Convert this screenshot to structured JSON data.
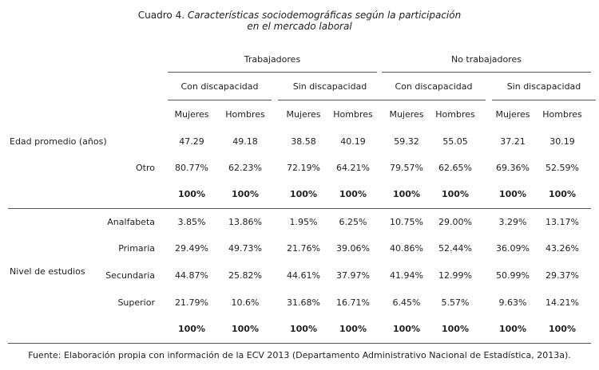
{
  "title": {
    "number": "Cuadro 4.",
    "lines": [
      "Características sociodemográficas según la participación",
      "en el mercado laboral"
    ]
  },
  "table": {
    "groups": [
      {
        "label": "Trabajadores",
        "subgroups": [
          {
            "label": "Con discapacidad",
            "columns": [
              "Mujeres",
              "Hombres"
            ]
          },
          {
            "label": "Sin discapacidad",
            "columns": [
              "Mujeres",
              "Hombres"
            ]
          }
        ]
      },
      {
        "label": "No trabajadores",
        "subgroups": [
          {
            "label": "Con discapacidad",
            "columns": [
              "Mujeres",
              "Hombres"
            ]
          },
          {
            "label": "Sin discapacidad",
            "columns": [
              "Mujeres",
              "Hombres"
            ]
          }
        ]
      }
    ],
    "sections": [
      {
        "label": "Edad promedio (años)",
        "rows": [
          {
            "cells": [
              "47.29",
              "49.18",
              "38.58",
              "40.19",
              "59.32",
              "55.05",
              "37.21",
              "30.19"
            ]
          },
          {
            "label": "Otro",
            "cells": [
              "80.77%",
              "62.23%",
              "72.19%",
              "64.21%",
              "79.57%",
              "62.65%",
              "69.36%",
              "52.59%"
            ]
          },
          {
            "cells": [
              "100%",
              "100%",
              "100%",
              "100%",
              "100%",
              "100%",
              "100%",
              "100%"
            ]
          }
        ]
      },
      {
        "label": "Nivel de estudios",
        "rows": [
          {
            "label": "Analfabeta",
            "cells": [
              "3.85%",
              "13.86%",
              "1.95%",
              "6.25%",
              "10.75%",
              "29.00%",
              "3.29%",
              "13.17%"
            ]
          },
          {
            "label": "Primaria",
            "cells": [
              "29.49%",
              "49.73%",
              "21.76%",
              "39.06%",
              "40.86%",
              "52.44%",
              "36.09%",
              "43.26%"
            ]
          },
          {
            "label": "Secundaria",
            "cells": [
              "44.87%",
              "25.82%",
              "44.61%",
              "37.97%",
              "41.94%",
              "12.99%",
              "50.99%",
              "29.37%"
            ]
          },
          {
            "label": "Superior",
            "cells": [
              "21.79%",
              "10.6%",
              "31.68%",
              "16.71%",
              "6.45%",
              "5.57%",
              "9.63%",
              "14.21%"
            ]
          },
          {
            "cells": [
              "100%",
              "100%",
              "100%",
              "100%",
              "100%",
              "100%",
              "100%",
              "100%"
            ]
          }
        ]
      }
    ]
  },
  "source": "Fuente: Elaboración propia con información de la ECV 2013 (Departamento Administrativo Nacional de Estadística, 2013a)."
}
